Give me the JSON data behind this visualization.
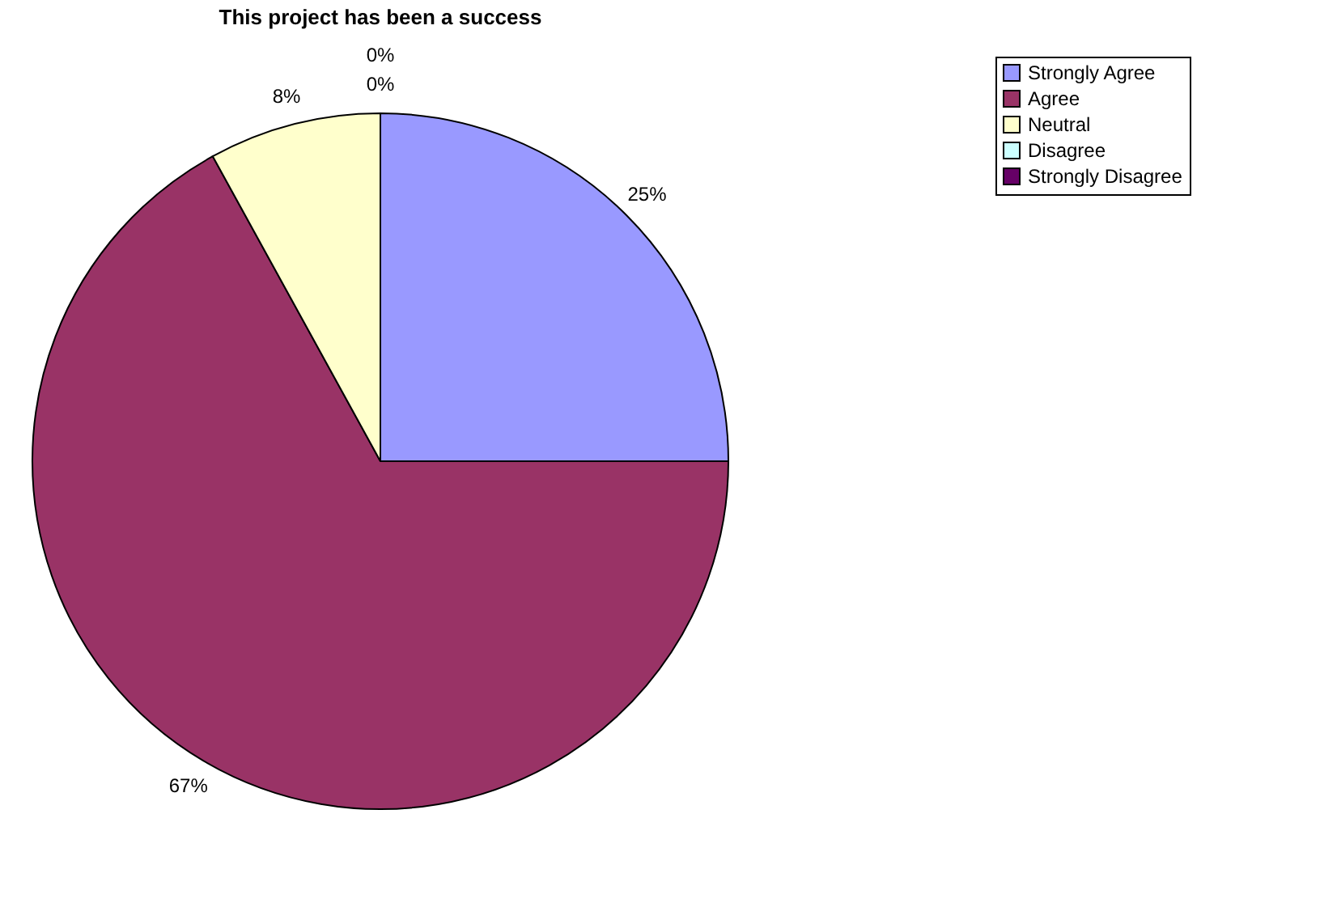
{
  "chart_data": {
    "type": "pie",
    "title": "This project has been a success",
    "categories": [
      "Strongly Agree",
      "Agree",
      "Neutral",
      "Disagree",
      "Strongly Disagree"
    ],
    "values": [
      25,
      67,
      8,
      0,
      0
    ],
    "colors": [
      "#9999ff",
      "#993366",
      "#ffffcc",
      "#ccffff",
      "#660066"
    ],
    "value_labels": [
      "25%",
      "67%",
      "8%",
      "0%",
      "0%"
    ],
    "legend": "right"
  }
}
